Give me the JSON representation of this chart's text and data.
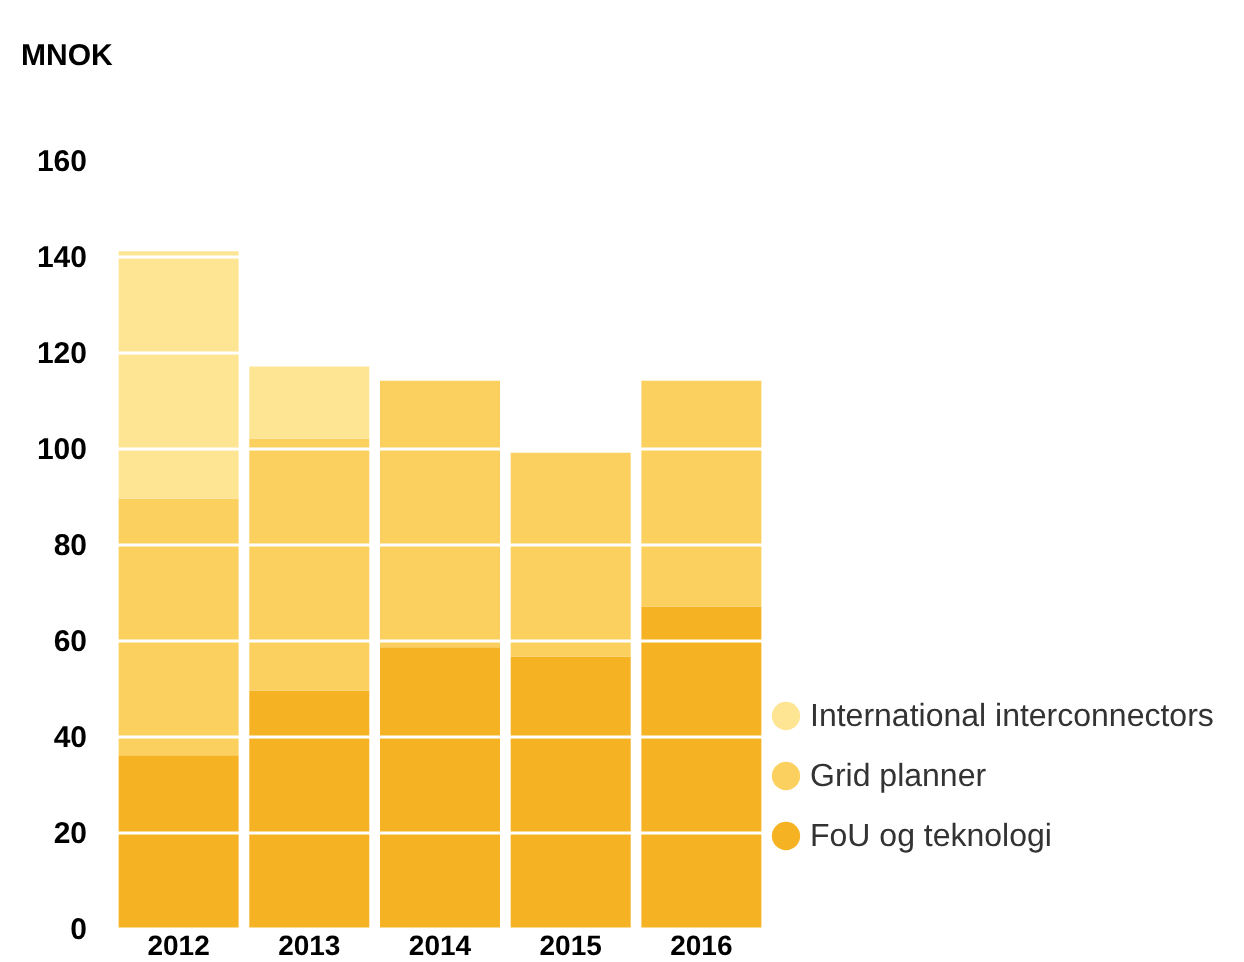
{
  "chart_data": {
    "type": "bar",
    "stacked": true,
    "ylabel": "MNOK",
    "categories": [
      "2012",
      "2013",
      "2014",
      "2015",
      "2016"
    ],
    "series": [
      {
        "name": "FoU og teknologi",
        "color": "#f5b324",
        "values": [
          36,
          49.5,
          58.5,
          56.5,
          67
        ]
      },
      {
        "name": "Grid planner",
        "color": "#fbd05f",
        "values": [
          53.5,
          52.5,
          55.5,
          42.5,
          47
        ]
      },
      {
        "name": "International interconnectors",
        "color": "#fde594",
        "values": [
          51.5,
          15,
          null,
          null,
          null
        ]
      }
    ],
    "ylim": [
      0,
      160
    ],
    "yticks": [
      0,
      20,
      40,
      60,
      80,
      100,
      120,
      140,
      160
    ],
    "grid": "y",
    "legend": "right"
  }
}
